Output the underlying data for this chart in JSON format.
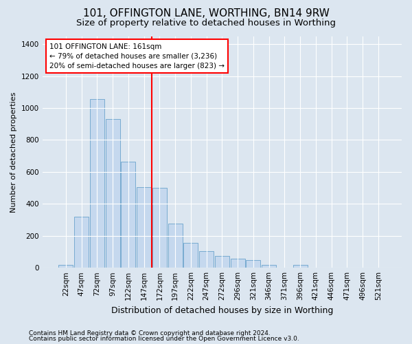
{
  "title1": "101, OFFINGTON LANE, WORTHING, BN14 9RW",
  "title2": "Size of property relative to detached houses in Worthing",
  "xlabel": "Distribution of detached houses by size in Worthing",
  "ylabel": "Number of detached properties",
  "bar_labels": [
    "22sqm",
    "47sqm",
    "72sqm",
    "97sqm",
    "122sqm",
    "147sqm",
    "172sqm",
    "197sqm",
    "222sqm",
    "247sqm",
    "272sqm",
    "296sqm",
    "321sqm",
    "346sqm",
    "371sqm",
    "396sqm",
    "421sqm",
    "446sqm",
    "471sqm",
    "496sqm",
    "521sqm"
  ],
  "bar_values": [
    20,
    320,
    1055,
    930,
    665,
    505,
    500,
    275,
    155,
    105,
    75,
    55,
    50,
    20,
    0,
    20,
    0,
    0,
    0,
    0,
    0
  ],
  "bar_color": "#c5d8ee",
  "bar_edgecolor": "#6aa3cc",
  "vline_index": 5.5,
  "vline_color": "red",
  "annotation_text": "101 OFFINGTON LANE: 161sqm\n← 79% of detached houses are smaller (3,236)\n20% of semi-detached houses are larger (823) →",
  "annotation_box_color": "white",
  "annotation_box_edgecolor": "red",
  "ylim": [
    0,
    1450
  ],
  "yticks": [
    0,
    200,
    400,
    600,
    800,
    1000,
    1200,
    1400
  ],
  "bg_color": "#dce6f0",
  "plot_bg_color": "#dce6f0",
  "footer1": "Contains HM Land Registry data © Crown copyright and database right 2024.",
  "footer2": "Contains public sector information licensed under the Open Government Licence v3.0.",
  "title1_fontsize": 11,
  "title2_fontsize": 9.5,
  "xlabel_fontsize": 9,
  "ylabel_fontsize": 8,
  "tick_fontsize": 7.5,
  "annotation_fontsize": 7.5,
  "footer_fontsize": 6.5
}
